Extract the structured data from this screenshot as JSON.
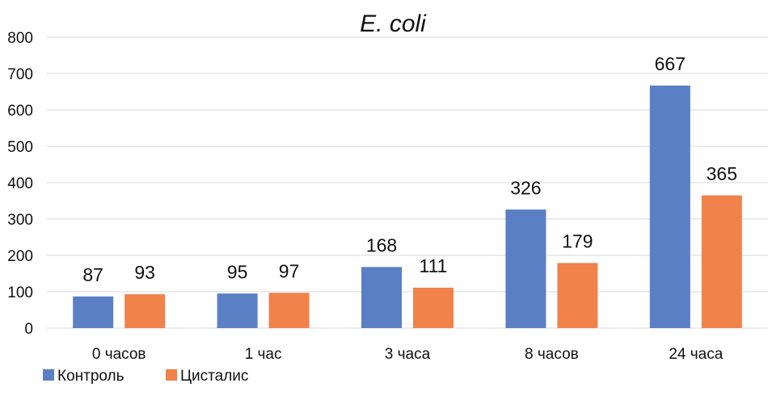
{
  "chart_data": {
    "type": "bar",
    "title": "E. coli",
    "categories": [
      "0 часов",
      "1 час",
      "3 часа",
      "8 часов",
      "24 часа"
    ],
    "series": [
      {
        "name": "Контроль",
        "color": "#5b7fc4",
        "values": [
          87,
          95,
          168,
          326,
          667
        ]
      },
      {
        "name": "Цисталис",
        "color": "#f0824a",
        "values": [
          93,
          97,
          111,
          179,
          365
        ]
      }
    ],
    "yticks": [
      0,
      100,
      200,
      300,
      400,
      500,
      600,
      700,
      800
    ],
    "ylim": [
      0,
      800
    ],
    "grid": true,
    "legend_position": "bottom-left",
    "xlabel": "",
    "ylabel": ""
  }
}
